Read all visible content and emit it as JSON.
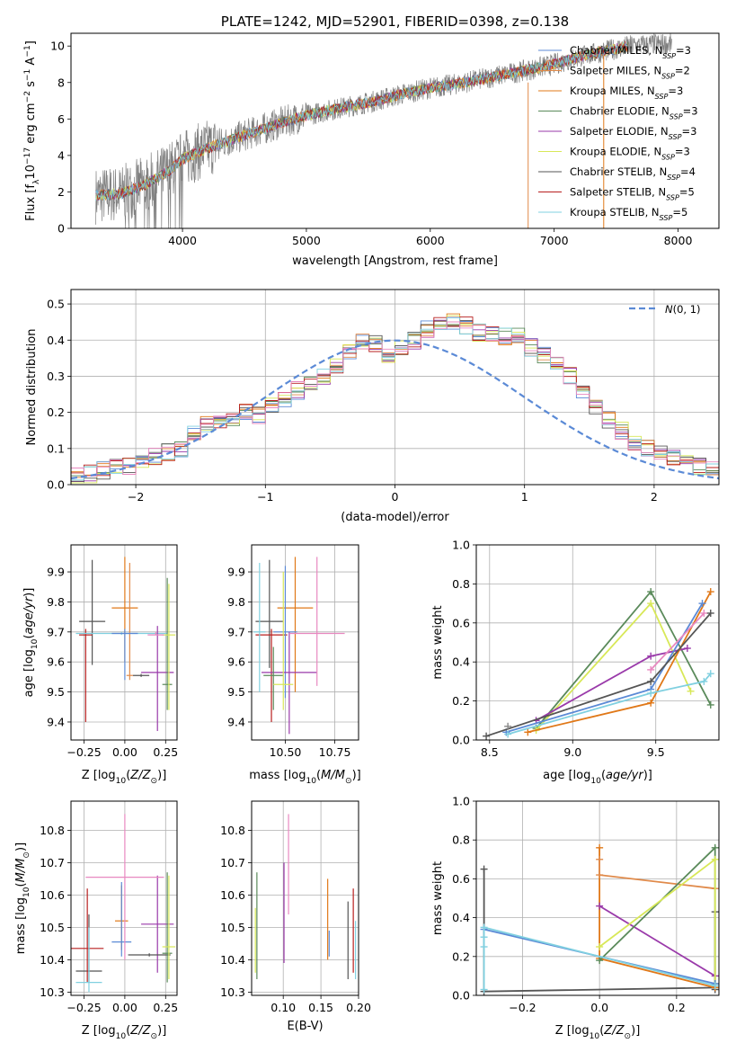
{
  "title": "PLATE=1242, MJD=52901, FIBERID=0398, z=0.138",
  "colors": {
    "Chabrier MILES": "#5b8ad6",
    "Salpeter MILES": "#e08a4a",
    "Kroupa MILES": "#e07818",
    "Chabrier ELODIE": "#5a8a5a",
    "Salpeter ELODIE": "#9a3aaa",
    "Kroupa ELODIE": "#d8e858",
    "Chabrier STELIB": "#555555",
    "Salpeter STELIB": "#b81f1f",
    "Kroupa STELIB": "#80d0e0",
    "extra_pink": "#e888c0",
    "data": "#808080",
    "gaussian": "#5b8ad6"
  },
  "chart_data": [
    {
      "id": "spectrum",
      "type": "line",
      "title": "PLATE=1242, MJD=52901, FIBERID=0398, z=0.138",
      "xlabel": "wavelength [Angstrom, rest frame]",
      "ylabel": "Flux [f",
      "xlim": [
        3100,
        8330
      ],
      "ylim": [
        0,
        10.7
      ],
      "xticks": [
        4000,
        5000,
        6000,
        7000,
        8000
      ],
      "yticks": [
        0,
        2,
        4,
        6,
        8,
        10
      ],
      "legend_loc": "right",
      "legend": [
        {
          "label": "Chabrier MILES, N",
          "sub": "SSP",
          "suffix": "=3",
          "color": "#5b8ad6"
        },
        {
          "label": "Salpeter MILES, N",
          "sub": "SSP",
          "suffix": "=2",
          "color": "#e08a4a"
        },
        {
          "label": "Kroupa MILES, N",
          "sub": "SSP",
          "suffix": "=3",
          "color": "#e07818"
        },
        {
          "label": "Chabrier ELODIE, N",
          "sub": "SSP",
          "suffix": "=3",
          "color": "#5a8a5a"
        },
        {
          "label": "Salpeter ELODIE, N",
          "sub": "SSP",
          "suffix": "=3",
          "color": "#9a3aaa"
        },
        {
          "label": "Kroupa ELODIE, N",
          "sub": "SSP",
          "suffix": "=3",
          "color": "#d8e858"
        },
        {
          "label": "Chabrier STELIB, N",
          "sub": "SSP",
          "suffix": "=4",
          "color": "#555555"
        },
        {
          "label": "Salpeter STELIB, N",
          "sub": "SSP",
          "suffix": "=5",
          "color": "#b81f1f"
        },
        {
          "label": "Kroupa STELIB, N",
          "sub": "SSP",
          "suffix": "=5",
          "color": "#80d0e0"
        }
      ],
      "continuum_x": [
        3300,
        3500,
        3700,
        3900,
        4000,
        4200,
        4500,
        4800,
        5000,
        5200,
        5500,
        5800,
        6000,
        6200,
        6500,
        6800,
        7000,
        7200,
        7400,
        7600,
        7800
      ],
      "continuum_y": [
        1.8,
        1.9,
        2.4,
        3.2,
        3.8,
        4.4,
        5.1,
        5.8,
        6.2,
        6.5,
        6.9,
        7.4,
        7.7,
        7.9,
        8.3,
        8.7,
        9.0,
        9.4,
        9.7,
        10.0,
        10.1
      ]
    },
    {
      "id": "residuals",
      "type": "histogram",
      "xlabel": "(data-model)/error",
      "ylabel": "Normed distribution",
      "xlim": [
        -2.5,
        2.5
      ],
      "ylim": [
        0,
        0.54
      ],
      "xticks": [
        -2,
        -1,
        0,
        1,
        2
      ],
      "yticks": [
        0.0,
        0.1,
        0.2,
        0.3,
        0.4,
        0.5
      ],
      "grid": true,
      "legend_loc": "top-right",
      "gaussian_label": "N(0,1)",
      "bin_width": 0.1,
      "bin_start": -2.5,
      "base_heights": [
        0.03,
        0.03,
        0.04,
        0.05,
        0.05,
        0.06,
        0.08,
        0.09,
        0.1,
        0.14,
        0.17,
        0.18,
        0.18,
        0.2,
        0.19,
        0.22,
        0.24,
        0.26,
        0.28,
        0.3,
        0.33,
        0.37,
        0.4,
        0.39,
        0.36,
        0.38,
        0.4,
        0.43,
        0.45,
        0.45,
        0.44,
        0.42,
        0.42,
        0.41,
        0.41,
        0.38,
        0.36,
        0.34,
        0.3,
        0.26,
        0.22,
        0.18,
        0.15,
        0.12,
        0.1,
        0.09,
        0.07,
        0.06,
        0.05,
        0.04
      ]
    },
    {
      "id": "age_vs_Z",
      "type": "errorbar",
      "xlabel": "Z [log",
      "ylabel": "age  [log",
      "xlim": [
        -0.33,
        0.32
      ],
      "ylim": [
        9.34,
        9.99
      ],
      "xticks": [
        -0.25,
        0.0,
        0.25
      ],
      "xticklabels": [
        "−0.25",
        "0.00",
        "0.25"
      ],
      "yticks": [
        9.4,
        9.5,
        9.6,
        9.7,
        9.8,
        9.9
      ],
      "grid": true,
      "points": [
        {
          "x": -0.2,
          "y": 9.735,
          "xerr": 0.08,
          "ylo": 9.59,
          "yhi": 9.94,
          "color": "#555555"
        },
        {
          "x": -0.24,
          "y": 9.69,
          "xerr": 0.04,
          "ylo": 9.4,
          "yhi": 9.71,
          "color": "#b81f1f"
        },
        {
          "x": -0.02,
          "y": 9.695,
          "xerr": 0.28,
          "ylo": 9.69,
          "yhi": 9.7,
          "color": "#80d0e0"
        },
        {
          "x": 0.0,
          "y": 9.78,
          "xerr": 0.08,
          "ylo": 9.6,
          "yhi": 9.95,
          "color": "#e07818"
        },
        {
          "x": 0.03,
          "y": 9.555,
          "xerr": 0.02,
          "ylo": 9.54,
          "yhi": 9.93,
          "color": "#e08a4a"
        },
        {
          "x": 0.0,
          "y": 9.695,
          "xerr": 0.08,
          "ylo": 9.54,
          "yhi": 9.71,
          "color": "#5b8ad6"
        },
        {
          "x": 0.2,
          "y": 9.565,
          "xerr": 0.1,
          "ylo": 9.37,
          "yhi": 9.72,
          "color": "#9a3aaa"
        },
        {
          "x": 0.1,
          "y": 9.555,
          "xerr": 0.05,
          "ylo": 9.55,
          "yhi": 9.56,
          "color": "#555555"
        },
        {
          "x": 0.26,
          "y": 9.525,
          "xerr": 0.03,
          "ylo": 9.44,
          "yhi": 9.88,
          "color": "#5a8a5a"
        },
        {
          "x": 0.27,
          "y": 9.69,
          "xerr": 0.04,
          "ylo": 9.44,
          "yhi": 9.86,
          "color": "#d8e858"
        },
        {
          "x": 0.19,
          "y": 9.69,
          "xerr": 0.05,
          "ylo": 9.69,
          "yhi": 9.7,
          "color": "#e888c0"
        }
      ]
    },
    {
      "id": "age_vs_mass",
      "type": "errorbar",
      "xlabel": "mass [log",
      "ylabel": "",
      "xlim": [
        10.33,
        10.87
      ],
      "ylim": [
        9.34,
        9.99
      ],
      "xticks": [
        10.5,
        10.75
      ],
      "xticklabels": [
        "10.50",
        "10.75"
      ],
      "yticks": [
        9.4,
        9.5,
        9.6,
        9.7,
        9.8,
        9.9
      ],
      "grid": true,
      "points": [
        {
          "x": 10.42,
          "y": 9.735,
          "xerr": 0.07,
          "ylo": 9.58,
          "yhi": 9.94,
          "color": "#555555"
        },
        {
          "x": 10.43,
          "y": 9.69,
          "xerr": 0.08,
          "ylo": 9.4,
          "yhi": 9.71,
          "color": "#b81f1f"
        },
        {
          "x": 10.37,
          "y": 9.7,
          "xerr": 0.03,
          "ylo": 9.5,
          "yhi": 9.93,
          "color": "#80d0e0"
        },
        {
          "x": 10.55,
          "y": 9.78,
          "xerr": 0.09,
          "ylo": 9.5,
          "yhi": 9.95,
          "color": "#e07818"
        },
        {
          "x": 10.5,
          "y": 9.7,
          "xerr": 0.06,
          "ylo": 9.48,
          "yhi": 9.92,
          "color": "#5b8ad6"
        },
        {
          "x": 10.52,
          "y": 9.565,
          "xerr": 0.14,
          "ylo": 9.36,
          "yhi": 9.7,
          "color": "#9a3aaa"
        },
        {
          "x": 10.44,
          "y": 9.555,
          "xerr": 0.05,
          "ylo": 9.44,
          "yhi": 9.65,
          "color": "#5a8a5a"
        },
        {
          "x": 10.49,
          "y": 9.525,
          "xerr": 0.05,
          "ylo": 9.44,
          "yhi": 9.9,
          "color": "#d8e858"
        },
        {
          "x": 10.66,
          "y": 9.695,
          "xerr": 0.14,
          "ylo": 9.52,
          "yhi": 9.95,
          "color": "#e888c0"
        }
      ]
    },
    {
      "id": "weight_vs_age",
      "type": "line",
      "xlabel": "age  [log",
      "ylabel": "mass weight",
      "xlim": [
        8.42,
        9.88
      ],
      "ylim": [
        0,
        1.0
      ],
      "xticks": [
        8.5,
        9.0,
        9.5
      ],
      "xticklabels": [
        "8.5",
        "9.0",
        "9.5"
      ],
      "yticks": [
        0.0,
        0.2,
        0.4,
        0.6,
        0.8,
        1.0
      ],
      "grid": true,
      "series": [
        {
          "color": "#5a8a5a",
          "x": [
            8.78,
            9.47,
            9.83
          ],
          "y": [
            0.06,
            0.76,
            0.18
          ]
        },
        {
          "color": "#d8e858",
          "x": [
            8.78,
            9.47,
            9.71
          ],
          "y": [
            0.05,
            0.7,
            0.25
          ]
        },
        {
          "color": "#9a3aaa",
          "x": [
            8.78,
            9.47,
            9.69
          ],
          "y": [
            0.1,
            0.43,
            0.47
          ]
        },
        {
          "color": "#e07818",
          "x": [
            8.73,
            9.47,
            9.83
          ],
          "y": [
            0.04,
            0.19,
            0.76
          ]
        },
        {
          "color": "#5b8ad6",
          "x": [
            8.6,
            9.47,
            9.78
          ],
          "y": [
            0.04,
            0.26,
            0.7
          ]
        },
        {
          "color": "#e888c0",
          "x": [
            9.47,
            9.79
          ],
          "y": [
            0.36,
            0.65
          ]
        },
        {
          "color": "#555555",
          "x": [
            8.48,
            9.47,
            9.83
          ],
          "y": [
            0.02,
            0.3,
            0.65
          ]
        },
        {
          "color": "#80d0e0",
          "x": [
            8.61,
            9.47,
            9.79,
            9.83
          ],
          "y": [
            0.03,
            0.24,
            0.3,
            0.34
          ]
        },
        {
          "color": "#888888",
          "x": [
            8.61
          ],
          "y": [
            0.07
          ]
        }
      ]
    },
    {
      "id": "mass_vs_Z",
      "type": "errorbar",
      "xlabel": "Z [log",
      "ylabel": "mass [log",
      "xlim": [
        -0.33,
        0.32
      ],
      "ylim": [
        10.29,
        10.89
      ],
      "xticks": [
        -0.25,
        0.0,
        0.25
      ],
      "xticklabels": [
        "−0.25",
        "0.00",
        "0.25"
      ],
      "yticks": [
        10.3,
        10.4,
        10.5,
        10.6,
        10.7,
        10.8
      ],
      "grid": true,
      "points": [
        {
          "x": -0.22,
          "y": 10.365,
          "xerr": 0.08,
          "ylo": 10.33,
          "yhi": 10.54,
          "color": "#555555"
        },
        {
          "x": -0.23,
          "y": 10.435,
          "xerr": 0.1,
          "ylo": 10.33,
          "yhi": 10.62,
          "color": "#b81f1f"
        },
        {
          "x": -0.22,
          "y": 10.33,
          "xerr": 0.08,
          "ylo": 10.3,
          "yhi": 10.5,
          "color": "#80d0e0"
        },
        {
          "x": -0.02,
          "y": 10.52,
          "xerr": 0.04,
          "ylo": 10.43,
          "yhi": 10.63,
          "color": "#e07818"
        },
        {
          "x": -0.02,
          "y": 10.455,
          "xerr": 0.06,
          "ylo": 10.41,
          "yhi": 10.64,
          "color": "#5b8ad6"
        },
        {
          "x": 0.2,
          "y": 10.51,
          "xerr": 0.1,
          "ylo": 10.36,
          "yhi": 10.66,
          "color": "#9a3aaa"
        },
        {
          "x": 0.15,
          "y": 10.415,
          "xerr": 0.13,
          "ylo": 10.41,
          "yhi": 10.42,
          "color": "#555555"
        },
        {
          "x": 0.26,
          "y": 10.42,
          "xerr": 0.03,
          "ylo": 10.33,
          "yhi": 10.67,
          "color": "#5a8a5a"
        },
        {
          "x": 0.27,
          "y": 10.44,
          "xerr": 0.04,
          "ylo": 10.34,
          "yhi": 10.66,
          "color": "#d8e858"
        },
        {
          "x": 0.0,
          "y": 10.655,
          "xerr": 0.24,
          "ylo": 10.4,
          "yhi": 10.85,
          "color": "#e888c0"
        }
      ]
    },
    {
      "id": "mass_vs_ebv",
      "type": "errorbar",
      "xlabel": "E(B-V)",
      "ylabel": "",
      "xlim": [
        0.058,
        0.2
      ],
      "ylim": [
        10.29,
        10.89
      ],
      "xticks": [
        0.1,
        0.15,
        0.2
      ],
      "xticklabels": [
        "0.10",
        "0.15",
        "0.20"
      ],
      "yticks": [
        10.3,
        10.4,
        10.5,
        10.6,
        10.7,
        10.8
      ],
      "grid": true,
      "points": [
        {
          "x": 0.065,
          "y": 10.5,
          "xerr": 0.0,
          "ylo": 10.34,
          "yhi": 10.67,
          "color": "#5a8a5a"
        },
        {
          "x": 0.063,
          "y": 10.45,
          "xerr": 0.0,
          "ylo": 10.36,
          "yhi": 10.56,
          "color": "#d8e858"
        },
        {
          "x": 0.101,
          "y": 10.55,
          "xerr": 0.0,
          "ylo": 10.39,
          "yhi": 10.7,
          "color": "#9a3aaa"
        },
        {
          "x": 0.107,
          "y": 10.7,
          "xerr": 0.0,
          "ylo": 10.54,
          "yhi": 10.85,
          "color": "#e888c0"
        },
        {
          "x": 0.159,
          "y": 10.52,
          "xerr": 0.0,
          "ylo": 10.4,
          "yhi": 10.65,
          "color": "#e07818"
        },
        {
          "x": 0.161,
          "y": 10.45,
          "xerr": 0.0,
          "ylo": 10.41,
          "yhi": 10.49,
          "color": "#5b8ad6"
        },
        {
          "x": 0.186,
          "y": 10.45,
          "xerr": 0.0,
          "ylo": 10.34,
          "yhi": 10.58,
          "color": "#555555"
        },
        {
          "x": 0.193,
          "y": 10.5,
          "xerr": 0.0,
          "ylo": 10.36,
          "yhi": 10.62,
          "color": "#b81f1f"
        },
        {
          "x": 0.196,
          "y": 10.45,
          "xerr": 0.0,
          "ylo": 10.34,
          "yhi": 10.52,
          "color": "#80d0e0"
        }
      ]
    },
    {
      "id": "weight_vs_Z",
      "type": "line",
      "xlabel": "Z [log",
      "ylabel": "mass weight",
      "xlim": [
        -0.32,
        0.31
      ],
      "ylim": [
        0,
        1.0
      ],
      "xticks": [
        -0.2,
        0.0,
        0.2
      ],
      "xticklabels": [
        "−0.2",
        "0.0",
        "0.2"
      ],
      "yticks": [
        0.0,
        0.2,
        0.4,
        0.6,
        0.8,
        1.0
      ],
      "grid": true,
      "series": [
        {
          "color": "#555555",
          "x": [
            -0.3,
            -0.3,
            0.3
          ],
          "y": [
            0.65,
            0.02,
            0.04
          ]
        },
        {
          "color": "#555555",
          "x": [
            0.3,
            0.3
          ],
          "y": [
            0.43,
            0.03
          ]
        },
        {
          "color": "#e07818",
          "x": [
            0.0,
            0.0,
            0.3
          ],
          "y": [
            0.76,
            0.19,
            0.04
          ]
        },
        {
          "color": "#e08a4a",
          "x": [
            0.0,
            0.0,
            0.3
          ],
          "y": [
            0.7,
            0.62,
            0.55
          ]
        },
        {
          "color": "#9a3aaa",
          "x": [
            0.0,
            0.3
          ],
          "y": [
            0.46,
            0.1
          ]
        },
        {
          "color": "#5a8a5a",
          "x": [
            0.0,
            0.3,
            0.3
          ],
          "y": [
            0.18,
            0.76,
            0.06
          ]
        },
        {
          "color": "#d8e858",
          "x": [
            0.0,
            0.3,
            0.3
          ],
          "y": [
            0.25,
            0.7,
            0.05
          ]
        },
        {
          "color": "#5b8ad6",
          "x": [
            -0.3,
            0.3
          ],
          "y": [
            0.34,
            0.06
          ]
        },
        {
          "color": "#80d0e0",
          "x": [
            -0.3,
            -0.3,
            0.3
          ],
          "y": [
            0.25,
            0.35,
            0.05
          ]
        },
        {
          "color": "#80d0e0",
          "x": [
            -0.3,
            -0.3
          ],
          "y": [
            0.3,
            0.03
          ]
        }
      ]
    }
  ]
}
